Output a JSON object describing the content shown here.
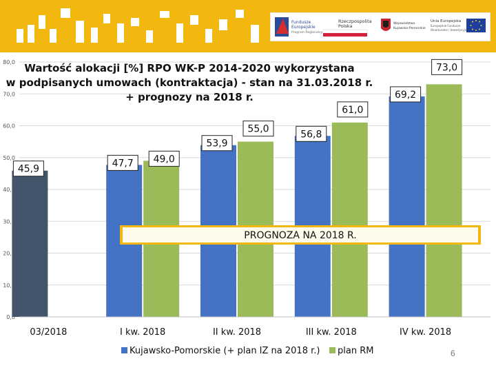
{
  "header": {
    "brand_color": "#f3b80f",
    "logos": {
      "fundusze": [
        "Fundusze",
        "Europejskie",
        "Program Regionalny"
      ],
      "rp": [
        "Rzeczpospolita",
        "Polska"
      ],
      "woj": [
        "Województwo",
        "Kujawsko-Pomorskie"
      ],
      "ue": [
        "Unia Europejska",
        "Europejskie Fundusze",
        "Strukturalne i Inwestycyjne"
      ]
    }
  },
  "chart_data": {
    "type": "bar",
    "title_lines": [
      "Wartość alokacji [%] RPO WK-P 2014-2020 wykorzystana",
      "w podpisanych umowach (kontraktacja) - stan na 31.03.2018 r.",
      "+ prognozy na 2018 r."
    ],
    "categories": [
      "03/2018",
      "I kw. 2018",
      "II kw. 2018",
      "III kw. 2018",
      "IV kw. 2018"
    ],
    "series": [
      {
        "name": "Kujawsko-Pomorskie (+ plan IZ na 2018 r.)",
        "color_first": "#44546a",
        "color": "#4472c4",
        "values": [
          45.9,
          47.7,
          53.9,
          56.8,
          69.2
        ],
        "labels": [
          "45,9",
          "47,7",
          "53,9",
          "56,8",
          "69,2"
        ]
      },
      {
        "name": "plan RM",
        "color": "#9bbb59",
        "values": [
          null,
          49.0,
          55.0,
          61.0,
          73.0
        ],
        "labels": [
          "",
          "49,0",
          "55,0",
          "61,0",
          "73,0"
        ]
      }
    ],
    "y_ticks": [
      "0,0",
      "10,0",
      "20,0",
      "30,0",
      "40,0",
      "50,0",
      "60,0",
      "70,0",
      "80,0"
    ],
    "ylim": [
      0,
      80
    ],
    "grid": true,
    "annotation": "PROGNOZA NA 2018 R.",
    "legend_position": "bottom"
  },
  "page_number": "6"
}
